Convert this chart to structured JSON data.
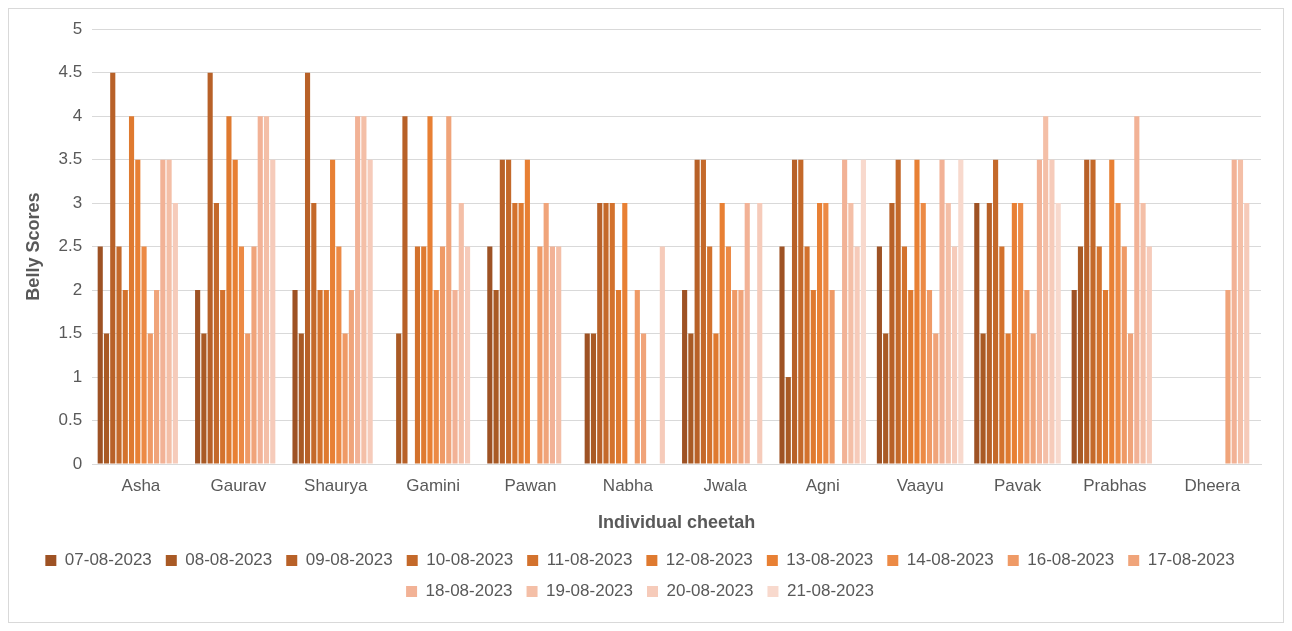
{
  "chart_data": {
    "type": "bar",
    "xlabel": "Individual cheetah",
    "ylabel": "Belly Scores",
    "categories": [
      "Asha",
      "Gaurav",
      "Shaurya",
      "Gamini",
      "Pawan",
      "Nabha",
      "Jwala",
      "Agni",
      "Vaayu",
      "Pavak",
      "Prabhas",
      "Dheera"
    ],
    "series": [
      {
        "name": "07-08-2023",
        "color": "#9e5224",
        "values": [
          2.5,
          2,
          2,
          null,
          2.5,
          1.5,
          2,
          2.5,
          2.5,
          3,
          2,
          null
        ]
      },
      {
        "name": "08-08-2023",
        "color": "#a95a25",
        "values": [
          1.5,
          1.5,
          1.5,
          1.5,
          2,
          1.5,
          1.5,
          1,
          1.5,
          1.5,
          2.5,
          null
        ]
      },
      {
        "name": "09-08-2023",
        "color": "#b86128",
        "values": [
          4.5,
          4.5,
          4.5,
          4,
          3.5,
          3,
          3.5,
          3.5,
          3,
          3,
          3.5,
          null
        ]
      },
      {
        "name": "10-08-2023",
        "color": "#c4692a",
        "values": [
          2.5,
          3,
          3,
          null,
          3.5,
          3,
          3.5,
          3.5,
          3.5,
          3.5,
          3.5,
          null
        ]
      },
      {
        "name": "11-08-2023",
        "color": "#d3722d",
        "values": [
          2,
          2,
          2,
          2.5,
          3,
          3,
          2.5,
          2.5,
          2.5,
          2.5,
          2.5,
          null
        ]
      },
      {
        "name": "12-08-2023",
        "color": "#df7a30",
        "values": [
          4,
          4,
          2,
          2.5,
          3,
          2,
          1.5,
          2,
          2,
          1.5,
          2,
          null
        ]
      },
      {
        "name": "13-08-2023",
        "color": "#e88034",
        "values": [
          3.5,
          3.5,
          3.5,
          4,
          3.5,
          3,
          3,
          3,
          3.5,
          3,
          3.5,
          null
        ]
      },
      {
        "name": "14-08-2023",
        "color": "#ec8a45",
        "values": [
          2.5,
          2.5,
          2.5,
          2,
          null,
          null,
          2.5,
          3,
          3,
          3,
          3,
          null
        ]
      },
      {
        "name": "16-08-2023",
        "color": "#ef9a66",
        "values": [
          1.5,
          1.5,
          1.5,
          2.5,
          2.5,
          2,
          2,
          2,
          2,
          2,
          2.5,
          null
        ]
      },
      {
        "name": "17-08-2023",
        "color": "#f0a47a",
        "values": [
          2,
          2.5,
          2,
          4,
          3,
          1.5,
          2,
          null,
          1.5,
          1.5,
          1.5,
          2
        ]
      },
      {
        "name": "18-08-2023",
        "color": "#f2b296",
        "values": [
          3.5,
          4,
          4,
          2,
          2.5,
          null,
          3,
          3.5,
          3.5,
          3.5,
          4,
          3.5
        ]
      },
      {
        "name": "19-08-2023",
        "color": "#f4bfa7",
        "values": [
          3.5,
          4,
          4,
          3,
          2.5,
          null,
          null,
          3,
          3,
          4,
          3,
          3.5
        ]
      },
      {
        "name": "20-08-2023",
        "color": "#f6cbba",
        "values": [
          3,
          3.5,
          3.5,
          2.5,
          null,
          2.5,
          3,
          2.5,
          2.5,
          3.5,
          2.5,
          3
        ]
      },
      {
        "name": "21-08-2023",
        "color": "#f8d9cd",
        "values": [
          null,
          null,
          null,
          null,
          null,
          null,
          null,
          3.5,
          3.5,
          3,
          null,
          null
        ]
      }
    ],
    "ylim": [
      0,
      5
    ],
    "yticks": [
      0,
      0.5,
      1,
      1.5,
      2,
      2.5,
      3,
      3.5,
      4,
      4.5,
      5
    ],
    "grid": "y",
    "legend": "bottom"
  }
}
